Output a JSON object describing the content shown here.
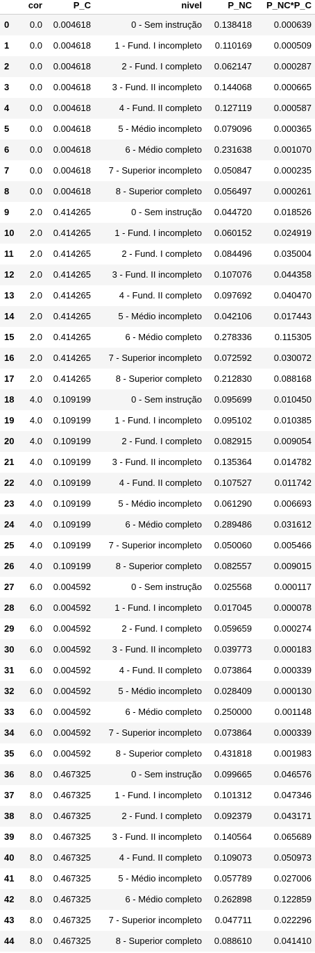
{
  "table": {
    "columns": [
      "",
      "cor",
      "P_C",
      "nivel",
      "P_NC",
      "P_NC*P_C"
    ],
    "rows": [
      [
        "0",
        "0.0",
        "0.004618",
        "0 - Sem instrução",
        "0.138418",
        "0.000639"
      ],
      [
        "1",
        "0.0",
        "0.004618",
        "1 - Fund. I incompleto",
        "0.110169",
        "0.000509"
      ],
      [
        "2",
        "0.0",
        "0.004618",
        "2 - Fund. I completo",
        "0.062147",
        "0.000287"
      ],
      [
        "3",
        "0.0",
        "0.004618",
        "3 - Fund. II incompleto",
        "0.144068",
        "0.000665"
      ],
      [
        "4",
        "0.0",
        "0.004618",
        "4 - Fund. II completo",
        "0.127119",
        "0.000587"
      ],
      [
        "5",
        "0.0",
        "0.004618",
        "5 - Médio incompleto",
        "0.079096",
        "0.000365"
      ],
      [
        "6",
        "0.0",
        "0.004618",
        "6 - Médio completo",
        "0.231638",
        "0.001070"
      ],
      [
        "7",
        "0.0",
        "0.004618",
        "7 - Superior incompleto",
        "0.050847",
        "0.000235"
      ],
      [
        "8",
        "0.0",
        "0.004618",
        "8 - Superior completo",
        "0.056497",
        "0.000261"
      ],
      [
        "9",
        "2.0",
        "0.414265",
        "0 - Sem instrução",
        "0.044720",
        "0.018526"
      ],
      [
        "10",
        "2.0",
        "0.414265",
        "1 - Fund. I incompleto",
        "0.060152",
        "0.024919"
      ],
      [
        "11",
        "2.0",
        "0.414265",
        "2 - Fund. I completo",
        "0.084496",
        "0.035004"
      ],
      [
        "12",
        "2.0",
        "0.414265",
        "3 - Fund. II incompleto",
        "0.107076",
        "0.044358"
      ],
      [
        "13",
        "2.0",
        "0.414265",
        "4 - Fund. II completo",
        "0.097692",
        "0.040470"
      ],
      [
        "14",
        "2.0",
        "0.414265",
        "5 - Médio incompleto",
        "0.042106",
        "0.017443"
      ],
      [
        "15",
        "2.0",
        "0.414265",
        "6 - Médio completo",
        "0.278336",
        "0.115305"
      ],
      [
        "16",
        "2.0",
        "0.414265",
        "7 - Superior incompleto",
        "0.072592",
        "0.030072"
      ],
      [
        "17",
        "2.0",
        "0.414265",
        "8 - Superior completo",
        "0.212830",
        "0.088168"
      ],
      [
        "18",
        "4.0",
        "0.109199",
        "0 - Sem instrução",
        "0.095699",
        "0.010450"
      ],
      [
        "19",
        "4.0",
        "0.109199",
        "1 - Fund. I incompleto",
        "0.095102",
        "0.010385"
      ],
      [
        "20",
        "4.0",
        "0.109199",
        "2 - Fund. I completo",
        "0.082915",
        "0.009054"
      ],
      [
        "21",
        "4.0",
        "0.109199",
        "3 - Fund. II incompleto",
        "0.135364",
        "0.014782"
      ],
      [
        "22",
        "4.0",
        "0.109199",
        "4 - Fund. II completo",
        "0.107527",
        "0.011742"
      ],
      [
        "23",
        "4.0",
        "0.109199",
        "5 - Médio incompleto",
        "0.061290",
        "0.006693"
      ],
      [
        "24",
        "4.0",
        "0.109199",
        "6 - Médio completo",
        "0.289486",
        "0.031612"
      ],
      [
        "25",
        "4.0",
        "0.109199",
        "7 - Superior incompleto",
        "0.050060",
        "0.005466"
      ],
      [
        "26",
        "4.0",
        "0.109199",
        "8 - Superior completo",
        "0.082557",
        "0.009015"
      ],
      [
        "27",
        "6.0",
        "0.004592",
        "0 - Sem instrução",
        "0.025568",
        "0.000117"
      ],
      [
        "28",
        "6.0",
        "0.004592",
        "1 - Fund. I incompleto",
        "0.017045",
        "0.000078"
      ],
      [
        "29",
        "6.0",
        "0.004592",
        "2 - Fund. I completo",
        "0.059659",
        "0.000274"
      ],
      [
        "30",
        "6.0",
        "0.004592",
        "3 - Fund. II incompleto",
        "0.039773",
        "0.000183"
      ],
      [
        "31",
        "6.0",
        "0.004592",
        "4 - Fund. II completo",
        "0.073864",
        "0.000339"
      ],
      [
        "32",
        "6.0",
        "0.004592",
        "5 - Médio incompleto",
        "0.028409",
        "0.000130"
      ],
      [
        "33",
        "6.0",
        "0.004592",
        "6 - Médio completo",
        "0.250000",
        "0.001148"
      ],
      [
        "34",
        "6.0",
        "0.004592",
        "7 - Superior incompleto",
        "0.073864",
        "0.000339"
      ],
      [
        "35",
        "6.0",
        "0.004592",
        "8 - Superior completo",
        "0.431818",
        "0.001983"
      ],
      [
        "36",
        "8.0",
        "0.467325",
        "0 - Sem instrução",
        "0.099665",
        "0.046576"
      ],
      [
        "37",
        "8.0",
        "0.467325",
        "1 - Fund. I incompleto",
        "0.101312",
        "0.047346"
      ],
      [
        "38",
        "8.0",
        "0.467325",
        "2 - Fund. I completo",
        "0.092379",
        "0.043171"
      ],
      [
        "39",
        "8.0",
        "0.467325",
        "3 - Fund. II incompleto",
        "0.140564",
        "0.065689"
      ],
      [
        "40",
        "8.0",
        "0.467325",
        "4 - Fund. II completo",
        "0.109073",
        "0.050973"
      ],
      [
        "41",
        "8.0",
        "0.467325",
        "5 - Médio incompleto",
        "0.057789",
        "0.027006"
      ],
      [
        "42",
        "8.0",
        "0.467325",
        "6 - Médio completo",
        "0.262898",
        "0.122859"
      ],
      [
        "43",
        "8.0",
        "0.467325",
        "7 - Superior incompleto",
        "0.047711",
        "0.022296"
      ],
      [
        "44",
        "8.0",
        "0.467325",
        "8 - Superior completo",
        "0.088610",
        "0.041410"
      ]
    ]
  }
}
